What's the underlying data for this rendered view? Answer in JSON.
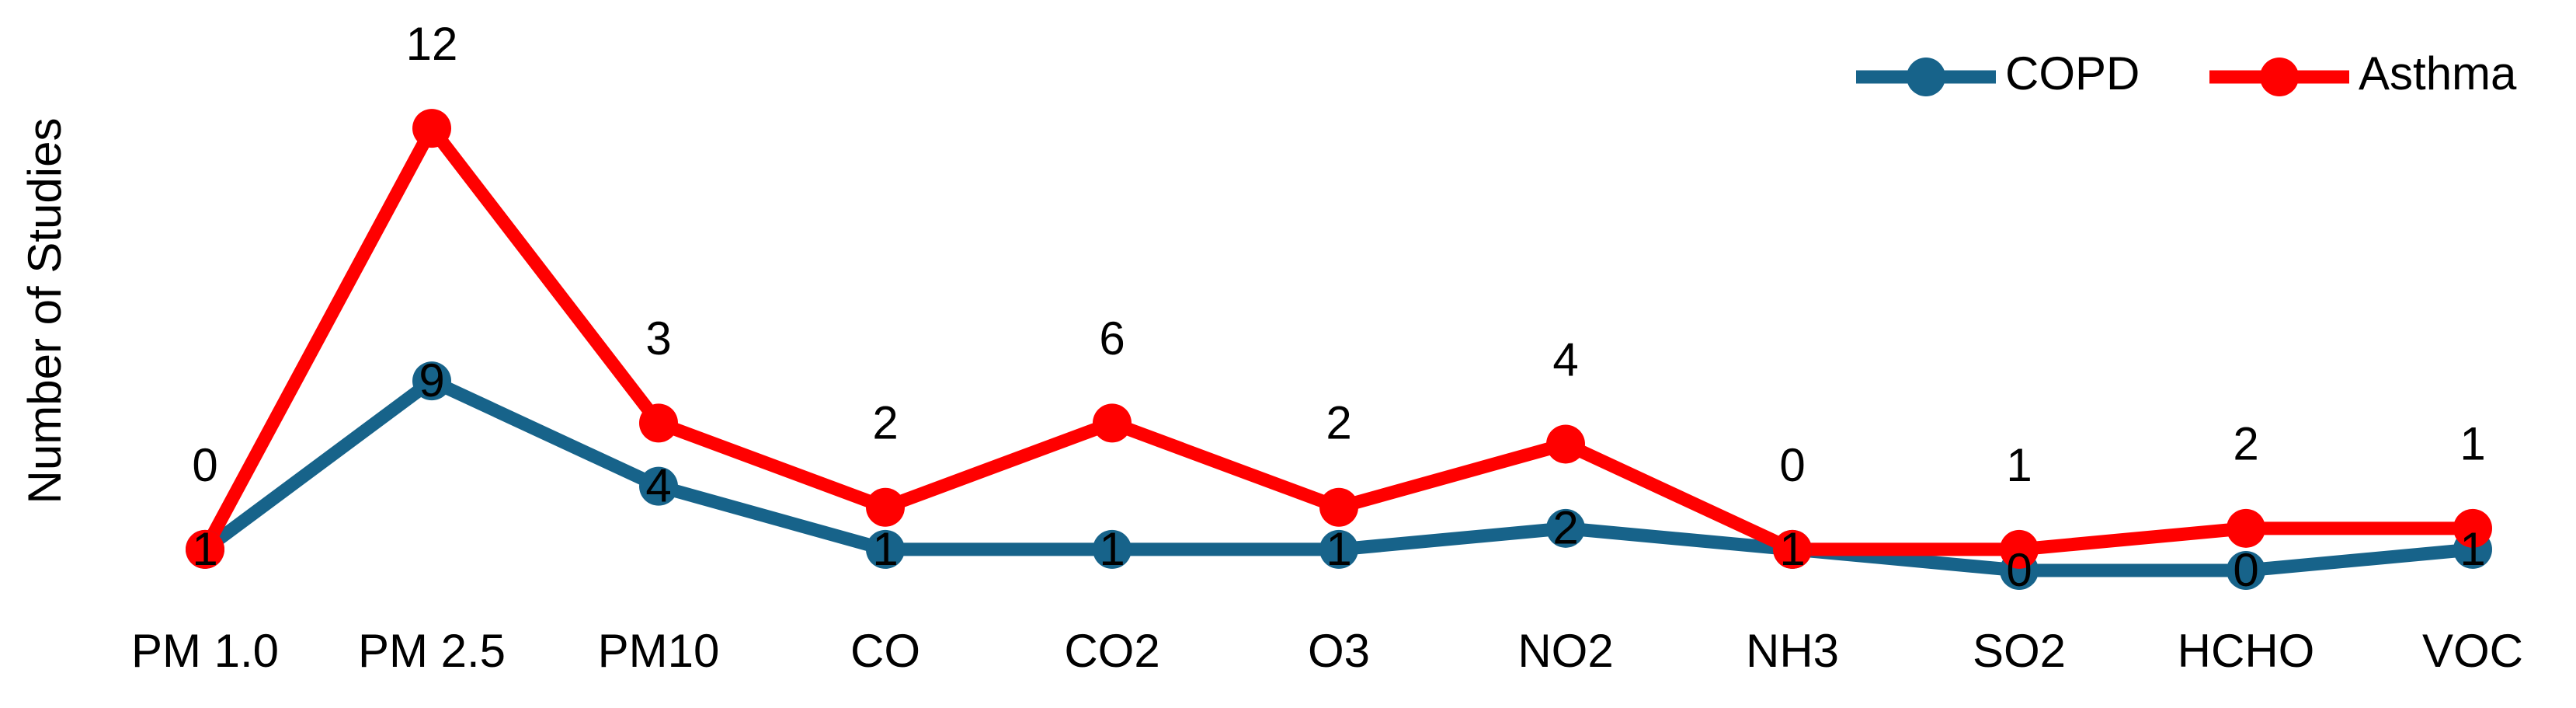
{
  "chart_data": {
    "type": "line",
    "stacked": true,
    "y_label": "Number of Studies",
    "categories": [
      "PM 1.0",
      "PM 2.5",
      "PM10",
      "CO",
      "CO2",
      "O3",
      "NO2",
      "NH3",
      "SO2",
      "HCHO",
      "VOC"
    ],
    "series": [
      {
        "name": "COPD",
        "color": "#17638a",
        "values": [
          1,
          9,
          4,
          1,
          1,
          1,
          2,
          1,
          0,
          0,
          1
        ]
      },
      {
        "name": "Asthma",
        "color": "#ff0000",
        "values": [
          0,
          12,
          3,
          2,
          6,
          2,
          4,
          0,
          1,
          2,
          1
        ]
      }
    ],
    "ylim": [
      0,
      22
    ],
    "legend": "top-right"
  }
}
